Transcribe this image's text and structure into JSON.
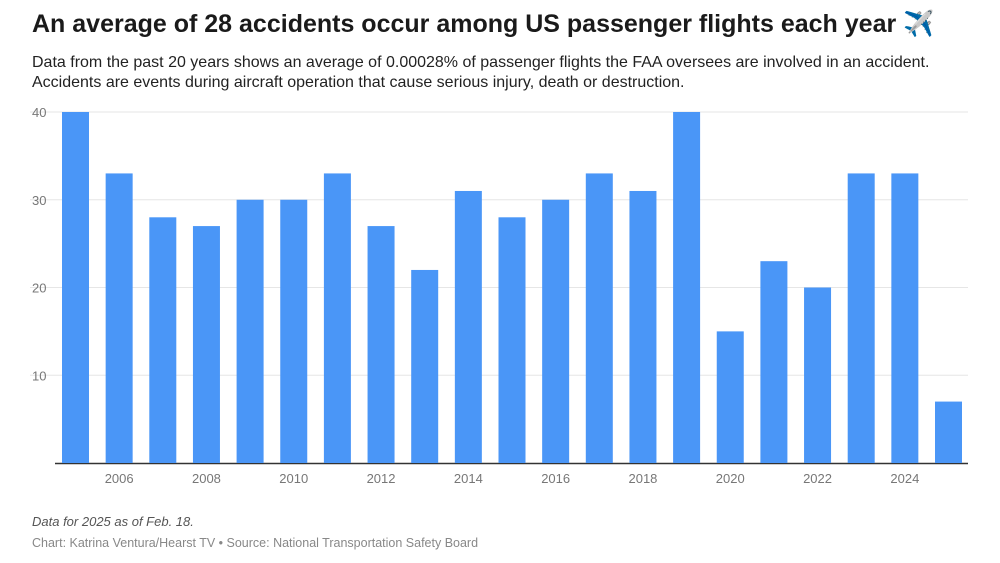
{
  "title": "An average of 28 accidents occur among US passenger flights each year ✈️",
  "subtitle": "Data from the past 20 years shows an average of 0.00028% of passenger flights the FAA oversees are involved in an accident. Accidents are events during aircraft operation that cause serious injury, death or destruction.",
  "note": "Data for 2025 as of Feb. 18.",
  "source": "Chart: Katrina Ventura/Hearst TV • Source: National Transportation Safety Board",
  "chart_data": {
    "type": "bar",
    "title": "An average of 28 accidents occur among US passenger flights each year ✈️",
    "xlabel": "",
    "ylabel": "",
    "categories": [
      "2005",
      "2006",
      "2007",
      "2008",
      "2009",
      "2010",
      "2011",
      "2012",
      "2013",
      "2014",
      "2015",
      "2016",
      "2017",
      "2018",
      "2019",
      "2020",
      "2021",
      "2022",
      "2023",
      "2024",
      "2025"
    ],
    "values": [
      40,
      33,
      28,
      27,
      30,
      30,
      33,
      27,
      22,
      31,
      28,
      30,
      33,
      31,
      40,
      15,
      23,
      20,
      33,
      33,
      7
    ],
    "x_tick_labels": [
      "2006",
      "2008",
      "2010",
      "2012",
      "2014",
      "2016",
      "2018",
      "2020",
      "2022",
      "2024"
    ],
    "y_ticks": [
      10,
      20,
      30,
      40
    ],
    "ylim": [
      0,
      40
    ],
    "grid": true,
    "bar_color": "#4a96f7"
  }
}
